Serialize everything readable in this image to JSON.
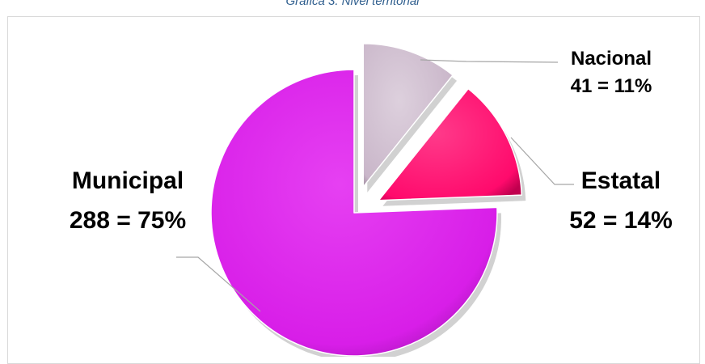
{
  "caption": "Gráfica 3. Nivel territorial",
  "colors": {
    "Nacional": "#c9b6c9",
    "Estatal": "#ff0a6c",
    "Municipal": "#d81ee8",
    "leader": "#a6a6a6"
  },
  "chart_data": {
    "type": "pie",
    "title": "",
    "exploded": [
      "Nacional",
      "Estatal"
    ],
    "slices": [
      {
        "label": "Nacional",
        "value": 41,
        "percent": "11%",
        "text": "41 = 11%"
      },
      {
        "label": "Estatal",
        "value": 52,
        "percent": "14%",
        "text": "52 = 14%"
      },
      {
        "label": "Municipal",
        "value": 288,
        "percent": "75%",
        "text": "288 = 75%"
      }
    ]
  }
}
